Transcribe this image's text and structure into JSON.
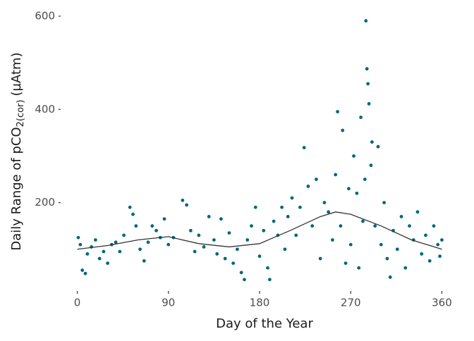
{
  "chart_data": {
    "type": "scatter",
    "x_label": "Day of the Year",
    "y_label": {
      "main": "Daily Range of pCO",
      "sub": "2(cor)",
      "unit": "(µAtm)"
    },
    "xlim": [
      -15,
      375
    ],
    "ylim": [
      15,
      612
    ],
    "xticks": [
      0,
      90,
      180,
      270,
      360
    ],
    "yticks": [
      200,
      400,
      600
    ],
    "grid": false,
    "series": [
      {
        "mode": "points",
        "color": "#00677a",
        "x": [
          1,
          3,
          5,
          8,
          10,
          14,
          18,
          22,
          26,
          30,
          34,
          38,
          42,
          46,
          52,
          55,
          58,
          62,
          66,
          70,
          74,
          78,
          82,
          86,
          90,
          95,
          104,
          108,
          112,
          116,
          120,
          125,
          130,
          135,
          138,
          142,
          146,
          150,
          154,
          158,
          162,
          165,
          168,
          172,
          176,
          180,
          184,
          188,
          190,
          194,
          198,
          202,
          205,
          208,
          212,
          216,
          220,
          224,
          228,
          232,
          236,
          240,
          244,
          248,
          252,
          255,
          257,
          260,
          262,
          265,
          268,
          270,
          273,
          276,
          278,
          280,
          282,
          284,
          285,
          286,
          287,
          288,
          290,
          291,
          294,
          297,
          300,
          303,
          306,
          309,
          312,
          316,
          320,
          324,
          328,
          332,
          336,
          340,
          344,
          348,
          352,
          356,
          358,
          360
        ],
        "values": [
          125,
          110,
          55,
          48,
          90,
          105,
          120,
          80,
          95,
          70,
          110,
          115,
          95,
          130,
          190,
          175,
          150,
          100,
          75,
          115,
          150,
          140,
          125,
          165,
          110,
          125,
          205,
          195,
          140,
          95,
          130,
          105,
          170,
          120,
          90,
          165,
          80,
          135,
          70,
          100,
          50,
          35,
          120,
          150,
          190,
          85,
          140,
          60,
          35,
          160,
          130,
          190,
          100,
          170,
          210,
          130,
          190,
          318,
          235,
          150,
          250,
          80,
          200,
          180,
          120,
          260,
          395,
          150,
          355,
          70,
          230,
          110,
          300,
          220,
          60,
          383,
          160,
          250,
          590,
          487,
          455,
          412,
          280,
          330,
          150,
          320,
          110,
          200,
          80,
          40,
          140,
          100,
          170,
          60,
          150,
          120,
          180,
          90,
          130,
          75,
          150,
          110,
          85,
          120
        ]
      },
      {
        "mode": "line",
        "color": "#333333",
        "x": [
          0,
          30,
          60,
          90,
          120,
          150,
          180,
          210,
          240,
          255,
          270,
          300,
          330,
          360
        ],
        "values": [
          100,
          108,
          120,
          127,
          112,
          105,
          112,
          140,
          170,
          180,
          175,
          150,
          120,
          100
        ]
      }
    ]
  }
}
